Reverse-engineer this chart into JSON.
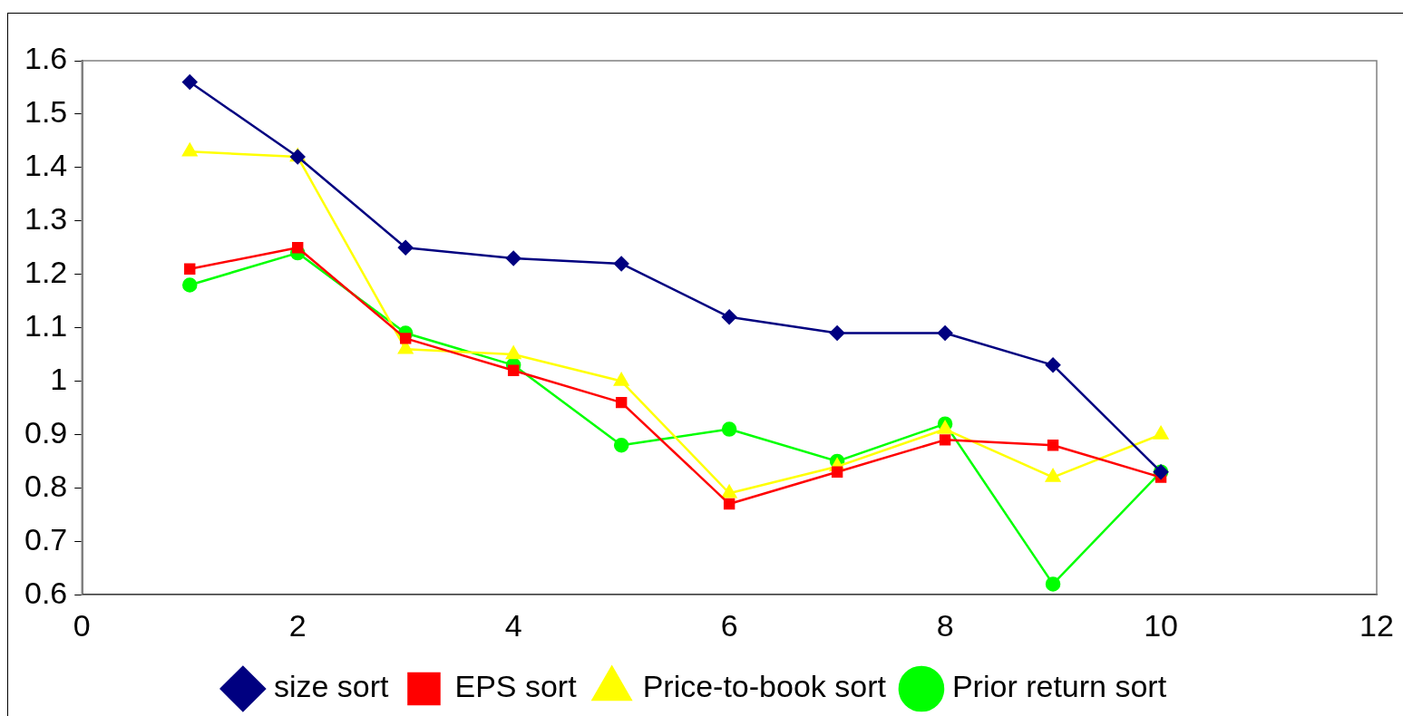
{
  "chart_data": {
    "type": "line",
    "x": [
      1,
      2,
      3,
      4,
      5,
      6,
      7,
      8,
      9,
      10
    ],
    "series": [
      {
        "name": "size sort",
        "color": "#000080",
        "marker": "diamond",
        "values": [
          1.56,
          1.42,
          1.25,
          1.23,
          1.22,
          1.12,
          1.09,
          1.09,
          1.03,
          0.83
        ]
      },
      {
        "name": "EPS sort",
        "color": "#ff0000",
        "marker": "square",
        "values": [
          1.21,
          1.25,
          1.08,
          1.02,
          0.96,
          0.77,
          0.83,
          0.89,
          0.88,
          0.82
        ]
      },
      {
        "name": "Price-to-book sort",
        "color": "#ffff00",
        "marker": "triangle",
        "values": [
          1.43,
          1.42,
          1.06,
          1.05,
          1.0,
          0.79,
          0.84,
          0.91,
          0.82,
          0.9
        ]
      },
      {
        "name": "Prior return sort",
        "color": "#00ff00",
        "marker": "circle",
        "values": [
          1.18,
          1.24,
          1.09,
          1.03,
          0.88,
          0.91,
          0.85,
          0.92,
          0.62,
          0.83
        ]
      }
    ],
    "xlim": [
      0,
      12
    ],
    "xticks": [
      0,
      2,
      4,
      6,
      8,
      10,
      12
    ],
    "ylim": [
      0.6,
      1.6
    ],
    "yticks": [
      0.6,
      0.7,
      0.8,
      0.9,
      1,
      1.1,
      1.2,
      1.3,
      1.4,
      1.5,
      1.6
    ],
    "grid": false,
    "legend": "bottom",
    "line_style": "solid"
  }
}
